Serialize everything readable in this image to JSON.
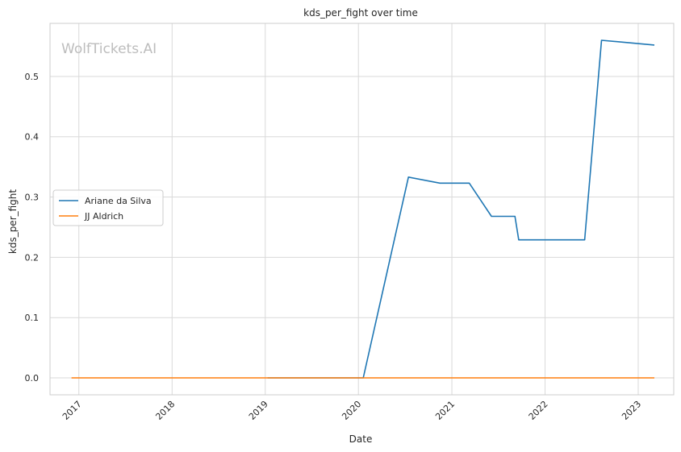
{
  "chart_data": {
    "type": "line",
    "title": "kds_per_fight over time",
    "xlabel": "Date",
    "ylabel": "kds_per_fight",
    "watermark": "WolfTickets.AI",
    "x_tick_labels": [
      "2017",
      "2018",
      "2019",
      "2020",
      "2021",
      "2022",
      "2023"
    ],
    "y_tick_labels": [
      "0.0",
      "0.1",
      "0.2",
      "0.3",
      "0.4",
      "0.5"
    ],
    "xlim": [
      "2016-09-10",
      "2023-05-20"
    ],
    "ylim": [
      -0.028,
      0.588
    ],
    "grid": true,
    "legend_position": "center-left",
    "series": [
      {
        "name": "Ariane da Silva",
        "color": "#1f77b4",
        "points": [
          [
            "2019-01-10",
            0.0
          ],
          [
            "2020-01-20",
            0.0
          ],
          [
            "2020-07-15",
            0.333
          ],
          [
            "2020-11-15",
            0.323
          ],
          [
            "2021-03-10",
            0.323
          ],
          [
            "2021-06-05",
            0.268
          ],
          [
            "2021-09-05",
            0.268
          ],
          [
            "2021-09-20",
            0.229
          ],
          [
            "2022-06-05",
            0.229
          ],
          [
            "2022-08-10",
            0.56
          ],
          [
            "2023-03-05",
            0.552
          ]
        ]
      },
      {
        "name": "JJ Aldrich",
        "color": "#ff7f0e",
        "points": [
          [
            "2016-12-03",
            0.0
          ],
          [
            "2023-03-05",
            0.0
          ]
        ]
      }
    ]
  }
}
